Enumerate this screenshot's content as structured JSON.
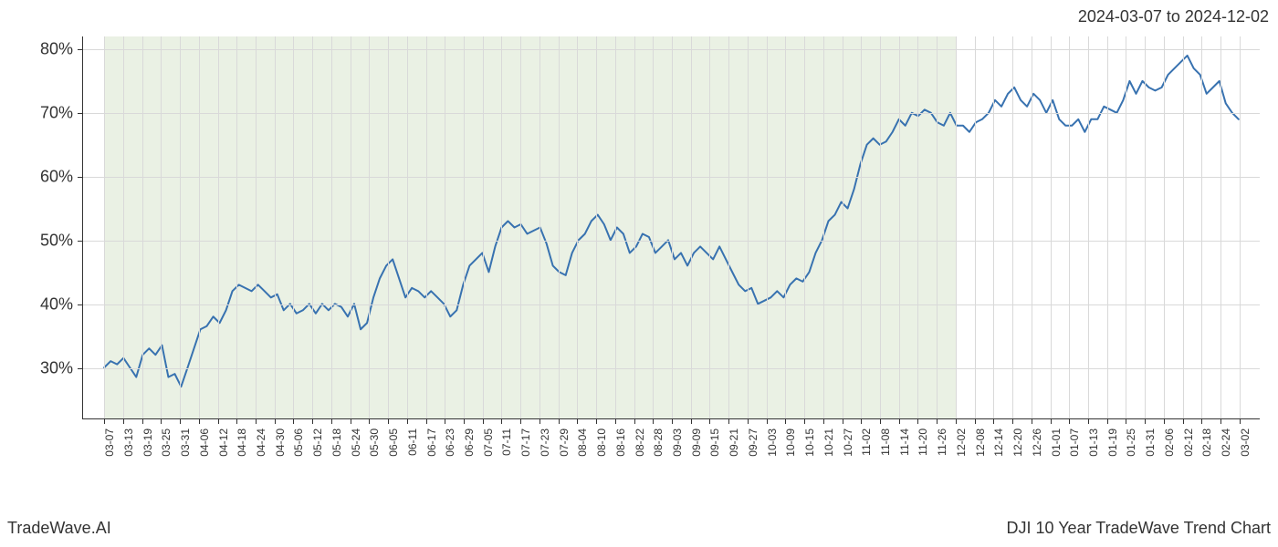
{
  "header": {
    "date_range": "2024-03-07 to 2024-12-02"
  },
  "footer": {
    "left": "TradeWave.AI",
    "right": "DJI 10 Year TradeWave Trend Chart"
  },
  "chart": {
    "type": "line",
    "background_color": "#ffffff",
    "grid_color": "#d9d9d9",
    "axis_color": "#333333",
    "line_color": "#3872b0",
    "line_width": 2,
    "shade_region": {
      "color": "#e6efdf",
      "opacity": 0.85,
      "x_start_index": 0,
      "x_end_index": 45
    },
    "y_axis": {
      "min": 22,
      "max": 82,
      "ticks": [
        30,
        40,
        50,
        60,
        70,
        80
      ],
      "labels": [
        "30%",
        "40%",
        "50%",
        "60%",
        "70%",
        "80%"
      ],
      "label_fontsize": 18,
      "label_color": "#333333"
    },
    "x_axis": {
      "labels": [
        "03-07",
        "03-13",
        "03-19",
        "03-25",
        "03-31",
        "04-06",
        "04-12",
        "04-18",
        "04-24",
        "04-30",
        "05-06",
        "05-12",
        "05-18",
        "05-24",
        "05-30",
        "06-05",
        "06-11",
        "06-17",
        "06-23",
        "06-29",
        "07-05",
        "07-11",
        "07-17",
        "07-23",
        "07-29",
        "08-04",
        "08-10",
        "08-16",
        "08-22",
        "08-28",
        "09-03",
        "09-09",
        "09-15",
        "09-21",
        "09-27",
        "10-03",
        "10-09",
        "10-15",
        "10-21",
        "10-27",
        "11-02",
        "11-08",
        "11-14",
        "11-20",
        "11-26",
        "12-02",
        "12-08",
        "12-14",
        "12-20",
        "12-26",
        "01-01",
        "01-07",
        "01-13",
        "01-19",
        "01-25",
        "01-31",
        "02-06",
        "02-12",
        "02-18",
        "02-24",
        "03-02"
      ],
      "label_fontsize": 12,
      "label_color": "#333333"
    },
    "series": {
      "values": [
        30,
        31,
        30.5,
        31.5,
        30,
        28.5,
        32,
        33,
        32,
        33.5,
        28.5,
        29,
        27,
        30,
        33,
        36,
        36.5,
        38,
        37,
        39,
        42,
        43,
        42.5,
        42,
        43,
        42,
        41,
        41.5,
        39,
        40,
        38.5,
        39,
        40,
        38.5,
        40,
        39,
        40,
        39.5,
        38,
        40,
        36,
        37,
        41,
        44,
        46,
        47,
        44,
        41,
        42.5,
        42,
        41,
        42,
        41,
        40,
        38,
        39,
        43,
        46,
        47,
        48,
        45,
        49,
        52,
        53,
        52,
        52.5,
        51,
        51.5,
        52,
        49.5,
        46,
        45,
        44.5,
        48,
        50,
        51,
        53,
        54,
        52.5,
        50,
        52,
        51,
        48,
        49,
        51,
        50.5,
        48,
        49,
        50,
        47,
        48,
        46,
        48,
        49,
        48,
        47,
        49,
        47,
        45,
        43,
        42,
        42.5,
        40,
        40.5,
        41,
        42,
        41,
        43,
        44,
        43.5,
        45,
        48,
        50,
        53,
        54,
        56,
        55,
        58,
        62,
        65,
        66,
        65,
        65.5,
        67,
        69,
        68,
        70,
        69.5,
        70.5,
        70,
        68.5,
        68,
        70,
        68,
        68,
        67,
        68.5,
        69,
        70,
        72,
        71,
        73,
        74,
        72,
        71,
        73,
        72,
        70,
        72,
        69,
        68,
        68,
        69,
        67,
        69,
        69,
        71,
        70.5,
        70,
        72,
        75,
        73,
        75,
        74,
        73.5,
        74,
        76,
        77,
        78,
        79,
        77,
        76,
        73,
        74,
        75,
        71.5,
        70,
        69
      ]
    }
  }
}
